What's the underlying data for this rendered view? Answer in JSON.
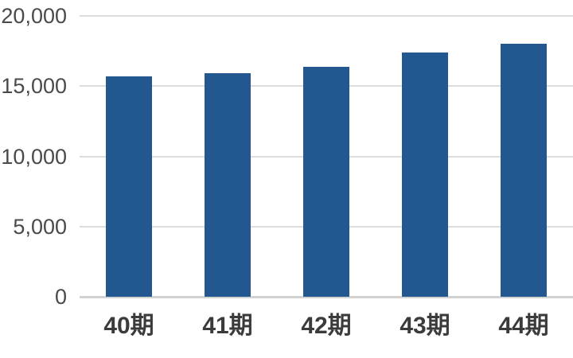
{
  "chart_data": {
    "type": "bar",
    "title": "",
    "xlabel": "",
    "ylabel": "",
    "categories": [
      "40期",
      "41期",
      "42期",
      "43期",
      "44期"
    ],
    "values": [
      15700,
      15900,
      16400,
      17400,
      18000
    ],
    "ylim": [
      0,
      20000
    ],
    "yticks": [
      0,
      5000,
      10000,
      15000,
      20000
    ],
    "ytick_labels": [
      "0",
      "5,000",
      "10,000",
      "15,000",
      "20,000"
    ],
    "grid": "horizontal",
    "legend_position": "none",
    "colors": {
      "bar": "#22588F",
      "gridline": "#dcdcdc",
      "axis_line": "#d2d2d2",
      "ytick_text": "#4a4a4a",
      "xtick_text": "#3b3b3b",
      "background": "#ffffff"
    }
  }
}
